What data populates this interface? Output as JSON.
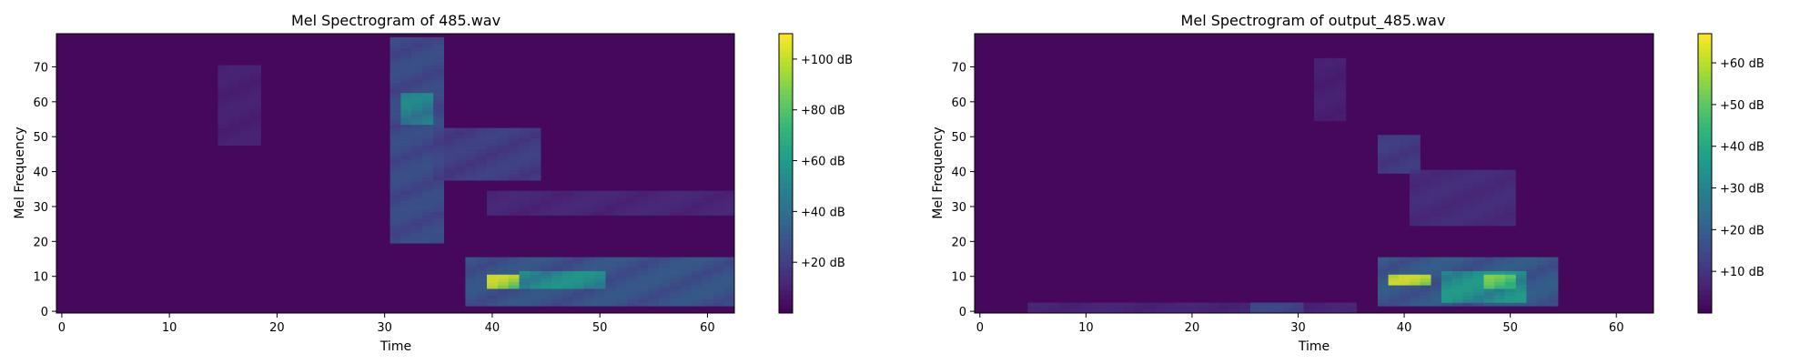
{
  "chart_data": [
    {
      "type": "heatmap",
      "title": "Mel Spectrogram of 485.wav",
      "xlabel": "Time",
      "ylabel": "Mel Frequency",
      "xlim": [
        -0.5,
        62.5
      ],
      "ylim": [
        -0.5,
        79.5
      ],
      "xticks": [
        0,
        10,
        20,
        30,
        40,
        50,
        60
      ],
      "yticks": [
        0,
        10,
        20,
        30,
        40,
        50,
        60,
        70
      ],
      "colormap": "viridis",
      "colorbar": {
        "range_db": [
          0,
          110
        ],
        "ticks": [
          20,
          40,
          60,
          80,
          100
        ],
        "tick_labels": [
          "+20 dB",
          "+40 dB",
          "+60 dB",
          "+80 dB",
          "+100 dB"
        ]
      },
      "n_frames": 63,
      "n_mels": 80,
      "regions": [
        {
          "t": [
            15,
            18
          ],
          "mel": [
            48,
            70
          ],
          "db": 12
        },
        {
          "t": [
            31,
            35
          ],
          "mel": [
            20,
            78
          ],
          "db": 30
        },
        {
          "t": [
            32,
            34
          ],
          "mel": [
            54,
            62
          ],
          "db": 55
        },
        {
          "t": [
            35,
            44
          ],
          "mel": [
            38,
            52
          ],
          "db": 24
        },
        {
          "t": [
            38,
            62
          ],
          "mel": [
            2,
            15
          ],
          "db": 34
        },
        {
          "t": [
            40,
            42
          ],
          "mel": [
            7,
            10
          ],
          "db": 105
        },
        {
          "t": [
            43,
            50
          ],
          "mel": [
            7,
            11
          ],
          "db": 60
        },
        {
          "t": [
            40,
            62
          ],
          "mel": [
            28,
            34
          ],
          "db": 14
        }
      ]
    },
    {
      "type": "heatmap",
      "title": "Mel Spectrogram of output_485.wav",
      "xlabel": "Time",
      "ylabel": "Mel Frequency",
      "xlim": [
        -0.5,
        63.5
      ],
      "ylim": [
        -0.5,
        79.5
      ],
      "xticks": [
        0,
        10,
        20,
        30,
        40,
        50,
        60
      ],
      "yticks": [
        0,
        10,
        20,
        30,
        40,
        50,
        60,
        70
      ],
      "colormap": "viridis",
      "colorbar": {
        "range_db": [
          0,
          67
        ],
        "ticks": [
          10,
          20,
          30,
          40,
          50,
          60
        ],
        "tick_labels": [
          "+10 dB",
          "+20 dB",
          "+30 dB",
          "+40 dB",
          "+50 dB",
          "+60 dB"
        ]
      },
      "n_frames": 64,
      "n_mels": 80,
      "regions": [
        {
          "t": [
            5,
            35
          ],
          "mel": [
            0,
            2
          ],
          "db": 8
        },
        {
          "t": [
            26,
            30
          ],
          "mel": [
            0,
            2
          ],
          "db": 16
        },
        {
          "t": [
            32,
            34
          ],
          "mel": [
            55,
            72
          ],
          "db": 7
        },
        {
          "t": [
            38,
            41
          ],
          "mel": [
            40,
            50
          ],
          "db": 14
        },
        {
          "t": [
            41,
            50
          ],
          "mel": [
            25,
            40
          ],
          "db": 10
        },
        {
          "t": [
            38,
            54
          ],
          "mel": [
            2,
            15
          ],
          "db": 22
        },
        {
          "t": [
            39,
            42
          ],
          "mel": [
            8,
            10
          ],
          "db": 64
        },
        {
          "t": [
            44,
            51
          ],
          "mel": [
            3,
            11
          ],
          "db": 38
        },
        {
          "t": [
            48,
            50
          ],
          "mel": [
            7,
            10
          ],
          "db": 55
        }
      ]
    }
  ]
}
